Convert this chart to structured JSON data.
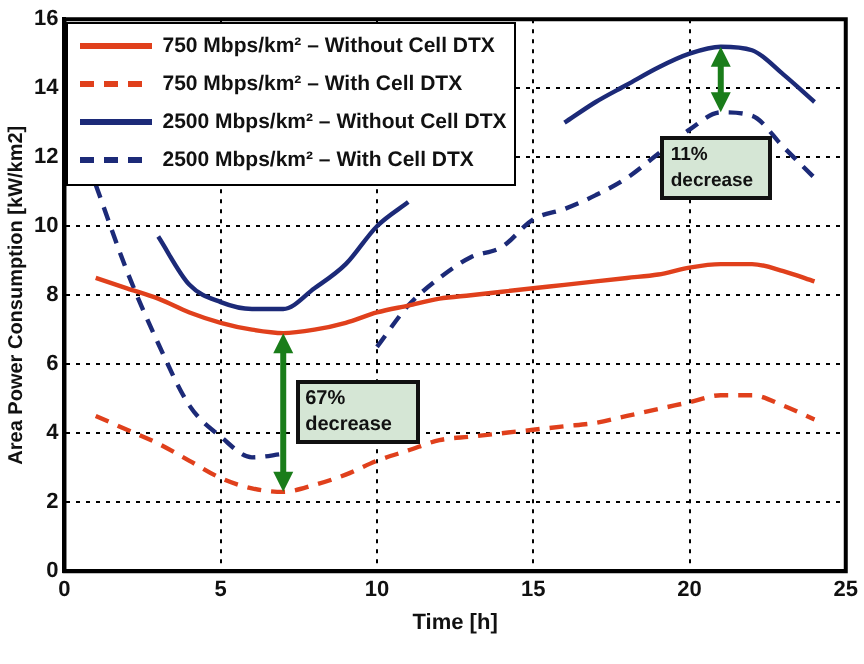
{
  "chart_data": {
    "type": "line",
    "xlabel": "Time [h]",
    "ylabel": "Area Power Consumption [kW/km2]",
    "x": [
      1,
      2,
      3,
      4,
      5,
      6,
      7,
      8,
      9,
      10,
      11,
      12,
      13,
      14,
      15,
      16,
      17,
      18,
      19,
      20,
      21,
      22,
      23,
      24
    ],
    "xlim": [
      0,
      25
    ],
    "xticks": [
      0,
      5,
      10,
      15,
      20,
      25
    ],
    "ylim": [
      0,
      16
    ],
    "yticks": [
      0,
      2,
      4,
      6,
      8,
      10,
      12,
      14,
      16
    ],
    "grid": true,
    "legend": "top left",
    "marker": "none",
    "series": [
      {
        "name": "750 Mbps/km² – Without Cell DTX",
        "color": "#e0401c",
        "line_style": "solid",
        "values": [
          8.5,
          8.2,
          7.9,
          7.5,
          7.2,
          7.0,
          6.9,
          7.0,
          7.2,
          7.5,
          7.7,
          7.9,
          8.0,
          8.1,
          8.2,
          8.3,
          8.4,
          8.5,
          8.6,
          8.8,
          8.9,
          8.9,
          8.7,
          8.4
        ]
      },
      {
        "name": "750 Mbps/km² – With Cell DTX",
        "color": "#e0401c",
        "line_style": "dashed",
        "values": [
          4.5,
          4.1,
          3.7,
          3.2,
          2.7,
          2.4,
          2.3,
          2.5,
          2.8,
          3.2,
          3.5,
          3.8,
          3.9,
          4.0,
          4.1,
          4.2,
          4.3,
          4.5,
          4.7,
          4.9,
          5.1,
          5.1,
          4.8,
          4.4
        ]
      },
      {
        "name": "2500 Mbps/km² – Without Cell DTX",
        "color": "#1c2a78",
        "line_style": "solid",
        "values": [
          null,
          null,
          9.7,
          8.3,
          7.8,
          7.6,
          7.6,
          8.2,
          8.9,
          10.0,
          10.7,
          null,
          null,
          null,
          null,
          13.0,
          13.6,
          14.1,
          14.6,
          15.0,
          15.2,
          15.1,
          14.4,
          13.6
        ]
      },
      {
        "name": "2500 Mbps/km² – With Cell DTX",
        "color": "#1c2a78",
        "line_style": "dashed",
        "values": [
          11.2,
          8.7,
          6.6,
          4.8,
          3.9,
          3.3,
          3.4,
          null,
          null,
          6.5,
          7.7,
          8.5,
          9.1,
          9.4,
          10.2,
          10.5,
          10.9,
          11.4,
          12.1,
          12.8,
          13.3,
          13.2,
          12.3,
          11.4
        ]
      }
    ],
    "annotations": [
      {
        "text": "67% decrease",
        "x": 7,
        "y": 6.9
      },
      {
        "text": "11% decrease",
        "x": 21,
        "y": 13.3
      }
    ]
  }
}
